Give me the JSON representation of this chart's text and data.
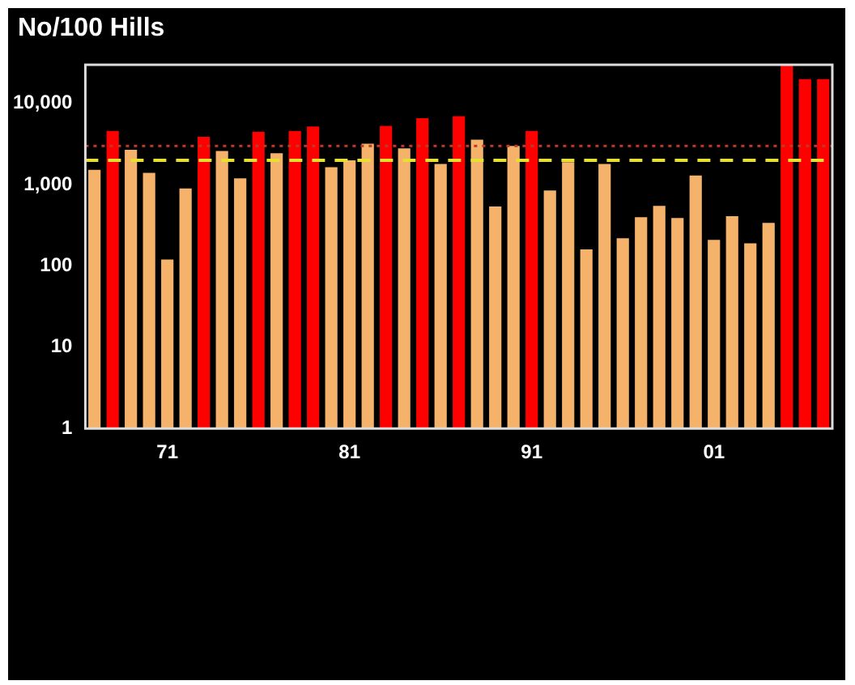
{
  "chart_data": {
    "type": "bar",
    "title": "No/100 Hills",
    "categories": [
      null,
      null,
      null,
      null,
      "71",
      null,
      null,
      null,
      null,
      null,
      null,
      null,
      null,
      null,
      "81",
      null,
      null,
      null,
      null,
      null,
      null,
      null,
      null,
      null,
      "91",
      null,
      null,
      null,
      null,
      null,
      null,
      null,
      null,
      null,
      "01",
      null,
      null,
      null,
      null,
      null,
      null
    ],
    "values": [
      1530,
      4600,
      2700,
      1400,
      120,
      900,
      3900,
      2600,
      1200,
      4500,
      2450,
      4600,
      5200,
      1650,
      2000,
      3200,
      5300,
      2800,
      6600,
      1800,
      7000,
      3600,
      540,
      3000,
      4600,
      850,
      1900,
      160,
      1800,
      220,
      400,
      550,
      390,
      1300,
      210,
      410,
      190,
      340,
      30000,
      20000,
      20000
    ],
    "colors": [
      "#f5b26b",
      "#ff0000",
      "#f5b26b",
      "#f5b26b",
      "#f5b26b",
      "#f5b26b",
      "#ff0000",
      "#f5b26b",
      "#f5b26b",
      "#ff0000",
      "#f5b26b",
      "#ff0000",
      "#ff0000",
      "#f5b26b",
      "#f5b26b",
      "#f5b26b",
      "#ff0000",
      "#f5b26b",
      "#ff0000",
      "#f5b26b",
      "#ff0000",
      "#f5b26b",
      "#f5b26b",
      "#f5b26b",
      "#ff0000",
      "#f5b26b",
      "#f5b26b",
      "#f5b26b",
      "#f5b26b",
      "#f5b26b",
      "#f5b26b",
      "#f5b26b",
      "#f5b26b",
      "#f5b26b",
      "#f5b26b",
      "#f5b26b",
      "#f5b26b",
      "#f5b26b",
      "#ff0000",
      "#ff0000",
      "#ff0000"
    ],
    "log": true,
    "ylim": [
      1,
      30000
    ],
    "yticks": [
      1,
      10,
      100,
      {
        "value": 1000,
        "label": "1,000"
      },
      {
        "value": 10000,
        "label": "10,000"
      }
    ],
    "grid": false,
    "legend": false,
    "ref_lines": [
      {
        "axis": "y",
        "value": 3000,
        "color": "#c0392b",
        "line_style": "dotted"
      },
      {
        "axis": "y",
        "value": 2000,
        "color": "#e8e030",
        "line_style": "dashed"
      }
    ]
  }
}
